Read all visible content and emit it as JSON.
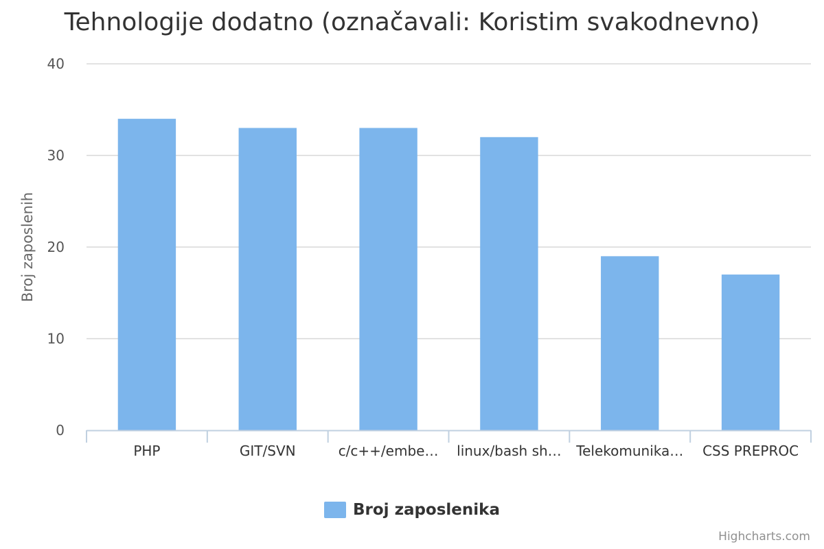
{
  "chart_data": {
    "type": "bar",
    "title": "Tehnologije dodatno (označavali: Koristim svakodnevno)",
    "xlabel": "",
    "ylabel": "Broj zaposlenih",
    "categories": [
      "PHP",
      "GIT/SVN",
      "c/c++/embe…",
      "linux/bash sh…",
      "Telekomunika…",
      "CSS PREPROC"
    ],
    "series": [
      {
        "name": "Broj zaposlenika",
        "values": [
          34,
          33,
          33,
          32,
          19,
          17
        ],
        "color": "#7cb5ec"
      }
    ],
    "ylim": [
      0,
      40
    ],
    "yticks": [
      0,
      10,
      20,
      30,
      40
    ],
    "grid": true,
    "legend_position": "bottom-center"
  },
  "credits": "Highcharts.com"
}
